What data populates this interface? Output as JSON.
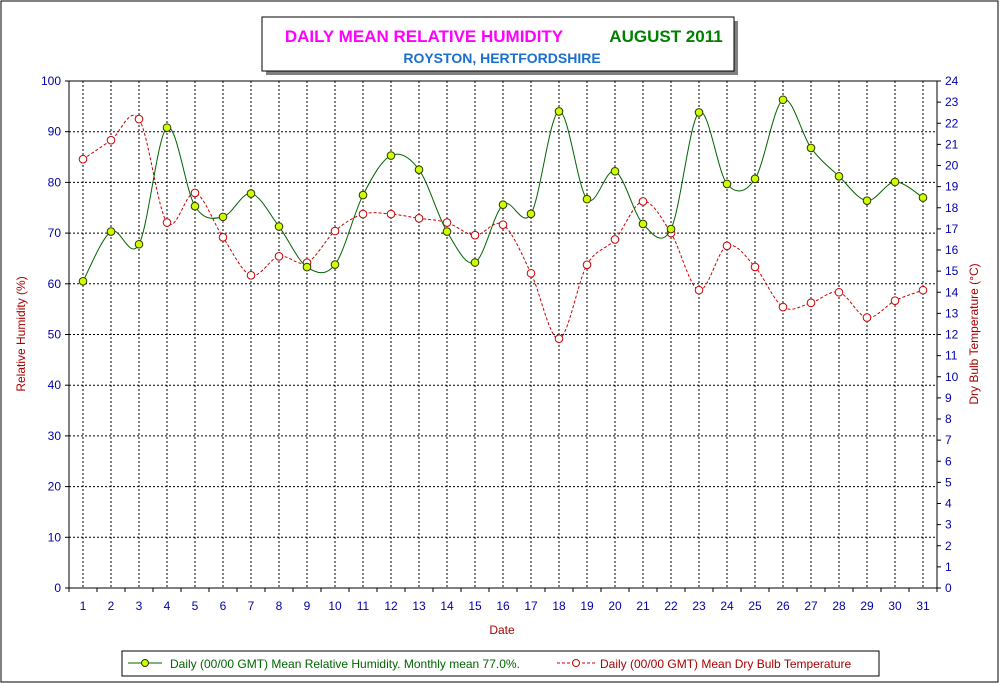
{
  "chart_data": {
    "type": "line",
    "title": "DAILY MEAN RELATIVE HUMIDITY",
    "title_period": "AUGUST 2011",
    "subtitle": "ROYSTON, HERTFORDSHIRE",
    "xlabel": "Date",
    "ylabel": "Relative Humidity (%)",
    "y2label": "Dry Bulb Temperature (°C)",
    "categories": [
      "1",
      "2",
      "3",
      "4",
      "5",
      "6",
      "7",
      "8",
      "9",
      "10",
      "11",
      "12",
      "13",
      "14",
      "15",
      "16",
      "17",
      "18",
      "19",
      "20",
      "21",
      "22",
      "23",
      "24",
      "25",
      "26",
      "27",
      "28",
      "29",
      "30",
      "31"
    ],
    "ylim": [
      0,
      100
    ],
    "y2lim": [
      0,
      24
    ],
    "yticks": [
      0,
      10,
      20,
      30,
      40,
      50,
      60,
      70,
      80,
      90,
      100
    ],
    "y2ticks": [
      0,
      1,
      2,
      3,
      4,
      5,
      6,
      7,
      8,
      9,
      10,
      11,
      12,
      13,
      14,
      15,
      16,
      17,
      18,
      19,
      20,
      21,
      22,
      23,
      24
    ],
    "grid": true,
    "legend_position": "bottom",
    "series": [
      {
        "name": "Daily (00/00 GMT) Mean Relative Humidity. Monthly mean 77.0%.",
        "axis": "left",
        "line_color": "#006400",
        "marker_color": "#ccff00",
        "line_style": "solid",
        "values": [
          60.5,
          70.3,
          67.8,
          90.8,
          75.3,
          73.2,
          77.8,
          71.3,
          63.3,
          63.8,
          77.5,
          85.3,
          82.5,
          70.3,
          64.2,
          75.6,
          73.8,
          94.0,
          76.7,
          82.2,
          71.8,
          70.8,
          93.8,
          79.7,
          80.7,
          96.3,
          86.8,
          81.2,
          76.4,
          80.1,
          77.0
        ]
      },
      {
        "name": "Daily (00/00 GMT) Mean Dry Bulb Temperature",
        "axis": "right",
        "line_color": "#cc0000",
        "marker_color": "#ffffff",
        "line_style": "dashed",
        "values": [
          20.3,
          21.2,
          22.2,
          17.3,
          18.7,
          16.6,
          14.8,
          15.7,
          15.4,
          16.9,
          17.7,
          17.7,
          17.5,
          17.3,
          16.7,
          17.2,
          14.9,
          11.8,
          15.3,
          16.5,
          18.3,
          16.8,
          14.1,
          16.2,
          15.2,
          13.3,
          13.5,
          14.0,
          12.8,
          13.6,
          14.1
        ]
      }
    ]
  }
}
